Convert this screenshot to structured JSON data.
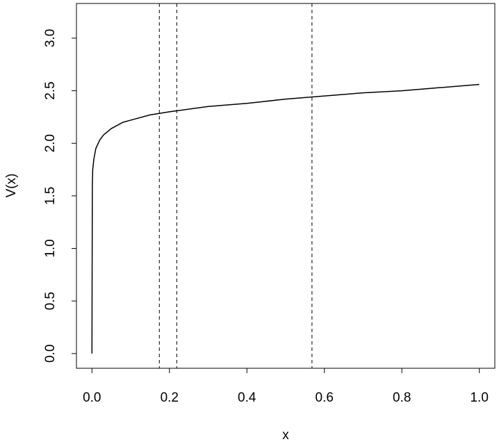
{
  "chart_data": {
    "type": "line",
    "x_label": "x",
    "y_label": "V(x)",
    "x": [
      0,
      0.001,
      0.002,
      0.005,
      0.01,
      0.02,
      0.03,
      0.05,
      0.08,
      0.1,
      0.15,
      0.2,
      0.3,
      0.4,
      0.5,
      0.6,
      0.7,
      0.8,
      0.9,
      1.0
    ],
    "y": [
      0,
      1.6,
      1.75,
      1.85,
      1.95,
      2.03,
      2.08,
      2.14,
      2.2,
      2.22,
      2.27,
      2.3,
      2.35,
      2.38,
      2.42,
      2.45,
      2.48,
      2.5,
      2.53,
      2.56
    ],
    "color": "#000000",
    "vlines": [
      0.174,
      0.219,
      0.568
    ],
    "xlim": [
      -0.04,
      1.04
    ],
    "ylim": [
      -0.14,
      3.33
    ],
    "xticks": [
      {
        "value": 0,
        "label": "0.0"
      },
      0.2,
      0.4,
      0.6,
      0.8,
      {
        "value": 1,
        "label": "1.0"
      }
    ],
    "yticks": [
      {
        "value": 0,
        "label": "0.0"
      },
      0.5,
      {
        "value": 1,
        "label": "1.0"
      },
      1.5,
      {
        "value": 2,
        "label": "2.0"
      },
      2.5,
      {
        "value": 3,
        "label": "3.0"
      }
    ]
  }
}
